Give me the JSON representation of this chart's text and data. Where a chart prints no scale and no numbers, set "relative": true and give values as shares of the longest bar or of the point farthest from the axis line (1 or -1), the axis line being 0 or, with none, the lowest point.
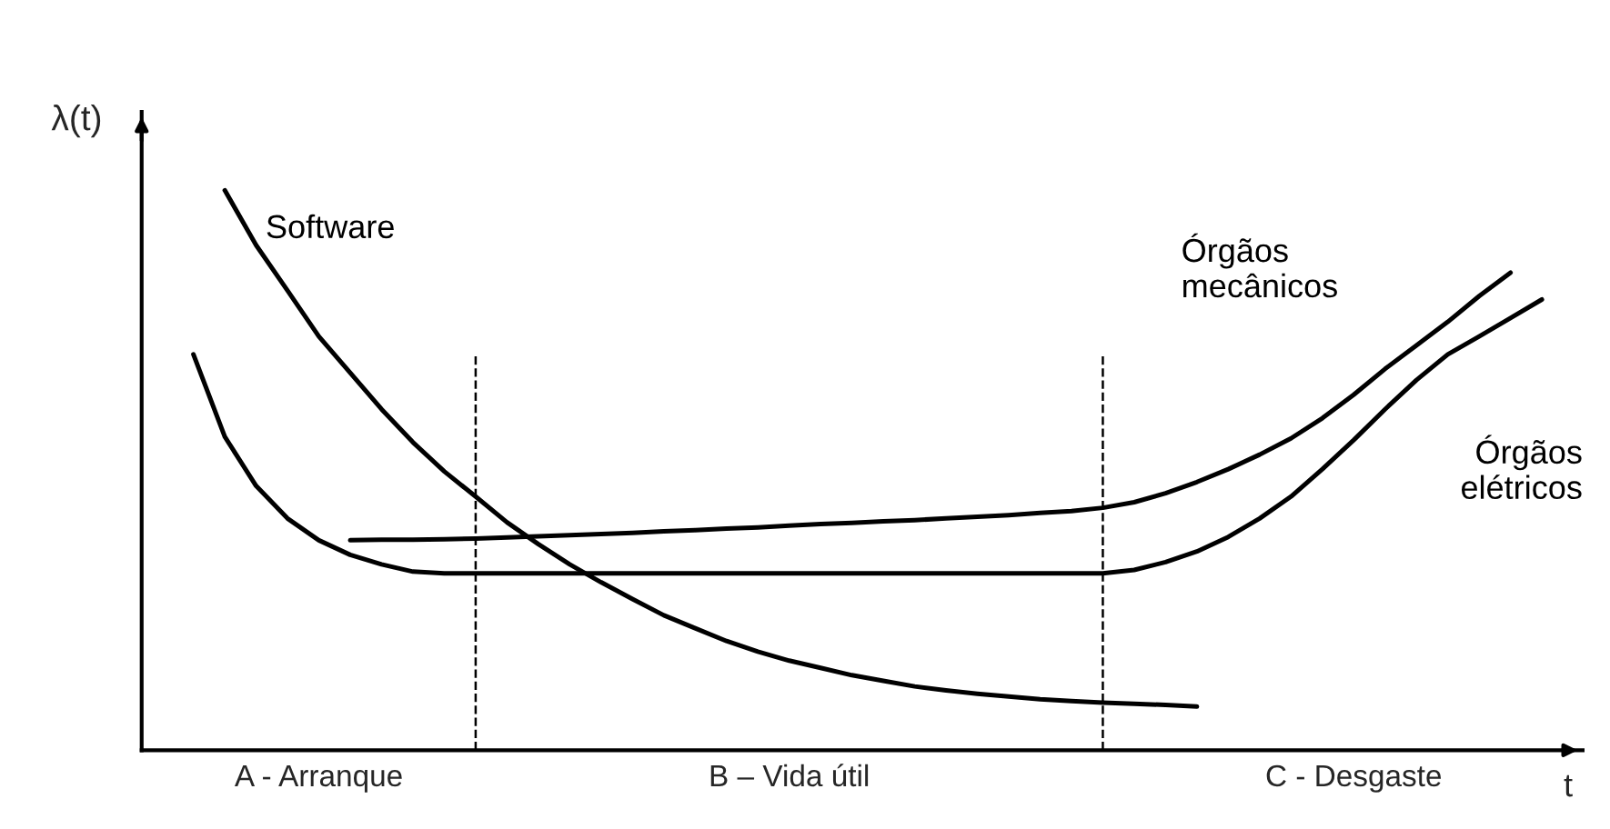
{
  "chart_data": {
    "type": "line",
    "relative": true,
    "xlabel": "t",
    "ylabel": "λ(t)",
    "legend": false,
    "marker": "none",
    "line_style": "solid",
    "categories": [
      null,
      null,
      null,
      null,
      null,
      null,
      null,
      null,
      null,
      null,
      null,
      null,
      null,
      null,
      null,
      null,
      null,
      null,
      null,
      null,
      null,
      null,
      null,
      null,
      null,
      null,
      null,
      null,
      null,
      null,
      null,
      null,
      null,
      null,
      null,
      null,
      null,
      null,
      null,
      null,
      null,
      null,
      null,
      null,
      null
    ],
    "series": [
      {
        "name": "Software",
        "color": "#000000",
        "values": [
          null,
          null,
          1.0,
          0.902,
          0.821,
          0.739,
          0.674,
          0.609,
          0.55,
          0.498,
          0.453,
          0.407,
          0.368,
          0.332,
          0.3,
          0.27,
          0.241,
          0.218,
          0.195,
          0.176,
          0.16,
          0.147,
          0.134,
          0.124,
          0.114,
          0.107,
          0.101,
          0.096,
          0.091,
          0.088,
          0.085,
          0.083,
          0.081,
          0.078,
          null,
          null,
          null,
          null,
          null,
          null,
          null,
          null,
          null,
          null,
          null
        ]
      },
      {
        "name": "Órgãos\nmecânicos",
        "color": "#000000",
        "values": [
          null,
          null,
          null,
          null,
          null,
          null,
          0.375,
          0.376,
          0.376,
          0.377,
          0.378,
          0.38,
          0.382,
          0.384,
          0.386,
          0.388,
          0.391,
          0.393,
          0.396,
          0.398,
          0.401,
          0.404,
          0.406,
          0.409,
          0.411,
          0.414,
          0.417,
          0.42,
          0.424,
          0.427,
          0.433,
          0.443,
          0.459,
          0.479,
          0.502,
          0.528,
          0.557,
          0.593,
          0.635,
          0.681,
          0.723,
          0.765,
          0.811,
          0.853,
          null
        ]
      },
      {
        "name": "Órgãos\nelétricos",
        "color": "#000000",
        "values": [
          null,
          0.707,
          0.56,
          0.472,
          0.414,
          0.375,
          0.349,
          0.332,
          0.319,
          0.316,
          0.316,
          0.316,
          0.316,
          0.316,
          0.316,
          0.316,
          0.316,
          0.316,
          0.316,
          0.316,
          0.316,
          0.316,
          0.316,
          0.316,
          0.316,
          0.316,
          0.316,
          0.316,
          0.316,
          0.316,
          0.316,
          0.322,
          0.336,
          0.355,
          0.381,
          0.414,
          0.453,
          0.502,
          0.554,
          0.609,
          0.661,
          0.707,
          0.739,
          0.772,
          0.805
        ]
      }
    ],
    "annotations": [
      "A - Arranque",
      "B – Vida útil",
      "C - Desgaste"
    ]
  }
}
